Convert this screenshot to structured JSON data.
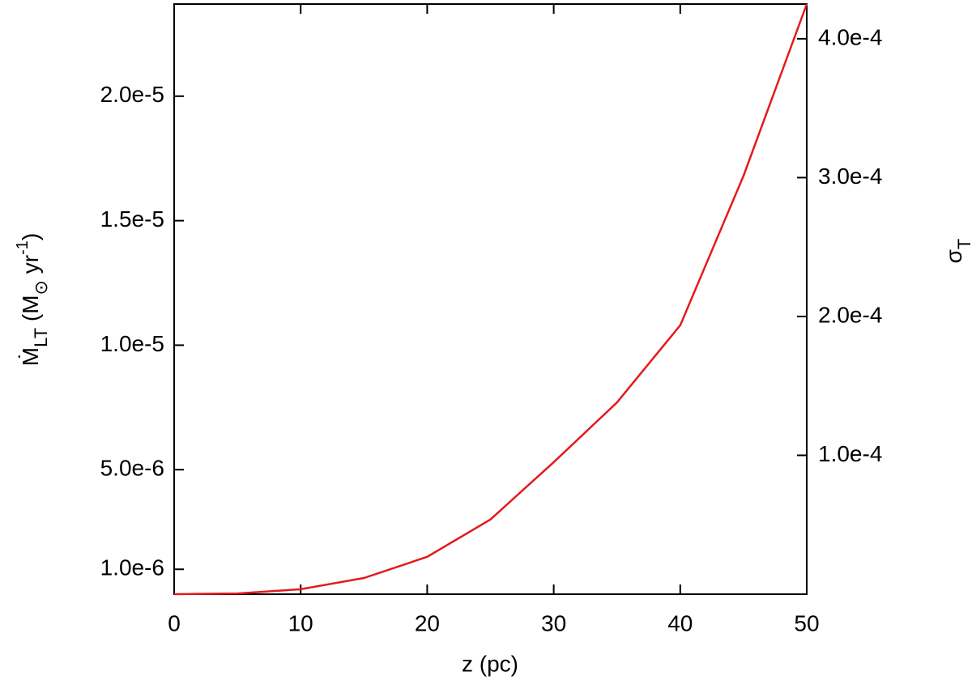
{
  "chart_data": {
    "type": "line",
    "xlabel": "z (pc)",
    "ylabel": [
      {
        "text": "Ṁ"
      },
      {
        "text": "LT",
        "sub": true
      },
      {
        "text": "  (M"
      },
      {
        "text": "⊙",
        "sub": true
      },
      {
        "text": " yr"
      },
      {
        "text": "-1",
        "sup": true
      },
      {
        "text": ")"
      }
    ],
    "y2label": [
      {
        "text": "σ"
      },
      {
        "text": "T",
        "sub": true
      }
    ],
    "x": [
      0,
      5,
      10,
      15,
      20,
      25,
      30,
      35,
      40,
      45,
      50
    ],
    "series": [
      {
        "color": "#e41a1c",
        "values": [
          0,
          3e-08,
          2e-07,
          6.5e-07,
          1.5e-06,
          3e-06,
          5.3e-06,
          7.7e-06,
          1.08e-05,
          1.68e-05,
          2.37e-05
        ]
      }
    ],
    "xlim": [
      0,
      50
    ],
    "xticks": [
      0,
      10,
      20,
      30,
      40,
      50
    ],
    "ylim": [
      0,
      2.37e-05
    ],
    "yticks": [
      {
        "value": 1e-06,
        "label": "1.0e-6"
      },
      {
        "value": 5e-06,
        "label": "5.0e-6"
      },
      {
        "value": 1e-05,
        "label": "1.0e-5"
      },
      {
        "value": 1.5e-05,
        "label": "1.5e-5"
      },
      {
        "value": 2e-05,
        "label": "2.0e-5"
      }
    ],
    "y2lim": [
      0,
      0.000425
    ],
    "y2ticks": [
      {
        "value": 0.0001,
        "label": "1.0e-4"
      },
      {
        "value": 0.0002,
        "label": "2.0e-4"
      },
      {
        "value": 0.0003,
        "label": "3.0e-4"
      },
      {
        "value": 0.0004,
        "label": "4.0e-4"
      }
    ],
    "grid": false
  }
}
